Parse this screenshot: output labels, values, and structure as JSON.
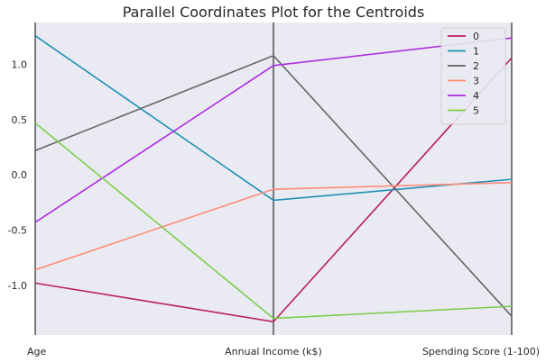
{
  "chart_data": {
    "type": "parallel_coordinates",
    "title": "Parallel Coordinates Plot for the Centroids",
    "axes": [
      "Age",
      "Annual Income (k$)",
      "Spending Score (1-100)"
    ],
    "ylim": [
      -1.45,
      1.38
    ],
    "yticks": [
      "1.0",
      "0.5",
      "0.0",
      "-0.5",
      "-1.0"
    ],
    "ytick_values": [
      1.0,
      0.5,
      0.0,
      -0.5,
      -1.0
    ],
    "grid": false,
    "legend_position": "top-right",
    "background": "#eaeaf2",
    "series": [
      {
        "name": "0",
        "color": "#b9205b",
        "values": [
          -0.98,
          -1.33,
          1.06
        ]
      },
      {
        "name": "1",
        "color": "#1e90b4",
        "values": [
          1.26,
          -0.23,
          -0.04
        ]
      },
      {
        "name": "2",
        "color": "#666666",
        "values": [
          0.22,
          1.08,
          -1.28
        ]
      },
      {
        "name": "3",
        "color": "#ff8c7a",
        "values": [
          -0.86,
          -0.13,
          -0.07
        ]
      },
      {
        "name": "4",
        "color": "#ad2fe0",
        "values": [
          -0.43,
          0.99,
          1.24
        ]
      },
      {
        "name": "5",
        "color": "#7ccd4a",
        "values": [
          0.47,
          -1.3,
          -1.19
        ]
      }
    ]
  }
}
